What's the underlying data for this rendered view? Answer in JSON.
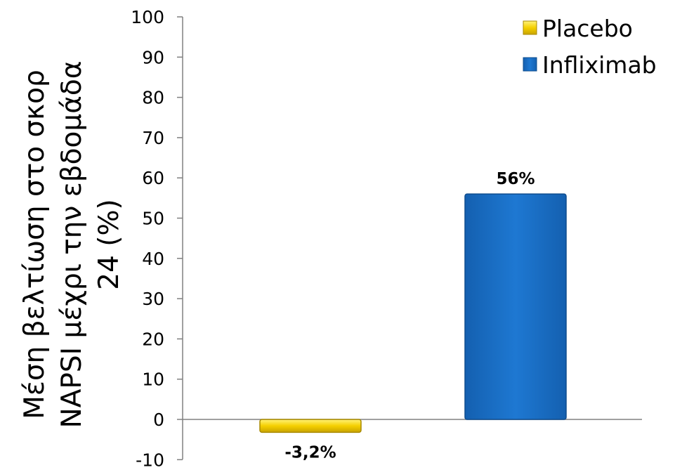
{
  "chart_data": {
    "type": "bar",
    "categories": [
      "Placebo",
      "Infliximab"
    ],
    "series": [
      {
        "name": "Placebo",
        "values": [
          -3.2,
          null
        ],
        "color": "#F5D000",
        "label": "-3,2%"
      },
      {
        "name": "Infliximab",
        "values": [
          null,
          56
        ],
        "color": "#1A6FC4",
        "label": "56%"
      }
    ],
    "ylabel_lines": [
      "Μέση βελτίωση στο σκορ",
      "NAPSI μέχρι την εβδομάδα",
      "24 (%)"
    ],
    "ylim": [
      -10,
      100
    ],
    "yticks": [
      -10,
      0,
      10,
      20,
      30,
      40,
      50,
      60,
      70,
      80,
      90,
      100
    ],
    "grid": false,
    "legend_position": "top-right"
  }
}
